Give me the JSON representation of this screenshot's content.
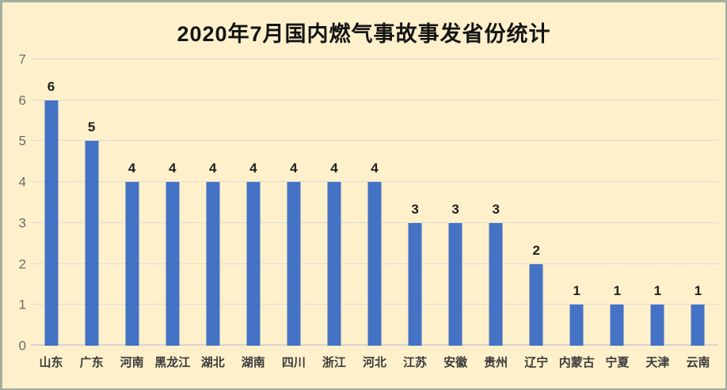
{
  "chart_data": {
    "type": "bar",
    "title": "2020年7月国内燃气事故事发省份统计",
    "categories": [
      "山东",
      "广东",
      "河南",
      "黑龙江",
      "湖北",
      "湖南",
      "四川",
      "浙江",
      "河北",
      "江苏",
      "安徽",
      "贵州",
      "辽宁",
      "内蒙古",
      "宁夏",
      "天津",
      "云南"
    ],
    "values": [
      6,
      5,
      4,
      4,
      4,
      4,
      4,
      4,
      4,
      3,
      3,
      3,
      2,
      1,
      1,
      1,
      1
    ],
    "xlabel": "",
    "ylabel": "",
    "ylim": [
      0,
      7
    ],
    "yticks": [
      0,
      1,
      2,
      3,
      4,
      5,
      6,
      7
    ],
    "grid": true,
    "legend": "none",
    "data_labels": true
  },
  "colors": {
    "bar": "#4472c4",
    "background": "#fdf0cb",
    "frame_border": "#a2ae9d",
    "gridline": "#dcdcd6",
    "title_text": "#141414",
    "ytick_text": "#6b6b6b",
    "xlabel_text": "#3a3a3a",
    "value_label_text": "#1f1f1f"
  }
}
